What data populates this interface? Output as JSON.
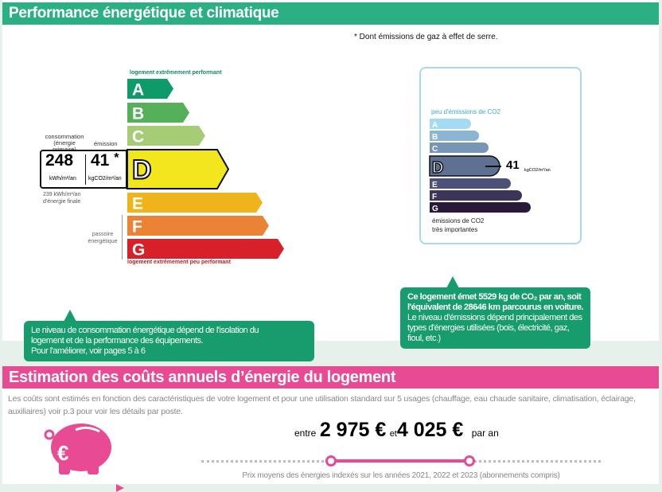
{
  "section1": {
    "title": "Performance énergétique et climatique",
    "footnote": "* Dont émissions de gaz à effet de serre."
  },
  "dpe": {
    "top_label": "logement extrêmement performant",
    "bottom_label": "logement extrêmement peu performant",
    "classes": [
      {
        "letter": "A",
        "color": "#0f9a6a"
      },
      {
        "letter": "B",
        "color": "#54b15a"
      },
      {
        "letter": "C",
        "color": "#a6cd76"
      },
      {
        "letter": "D",
        "color": "#f2e61c"
      },
      {
        "letter": "E",
        "color": "#efb41c"
      },
      {
        "letter": "F",
        "color": "#eb8337"
      },
      {
        "letter": "G",
        "color": "#d8202a"
      }
    ],
    "current_class": "D",
    "consumption_label": "consommation",
    "consumption_sub": "(énergie primaire)",
    "emission_label": "émission",
    "consumption_value": "248",
    "consumption_unit": "kWh/m²/an",
    "emission_value": "41",
    "emission_star": "*",
    "emission_unit": "kgCO2/m²/an",
    "final_energy": "239 kWh/m²/an",
    "final_energy_label": "d'énergie finale",
    "passoire_1": "passoire",
    "passoire_2": "énergétique"
  },
  "ges": {
    "top_label": "peu d'émissions de CO2",
    "bottom_label_1": "émissions de CO2",
    "bottom_label_2": "très importantes",
    "classes": [
      {
        "letter": "A",
        "color": "#a4dbf3"
      },
      {
        "letter": "B",
        "color": "#8cb4d3"
      },
      {
        "letter": "C",
        "color": "#7795b4"
      },
      {
        "letter": "D",
        "color": "#5e7192"
      },
      {
        "letter": "E",
        "color": "#4b5177"
      },
      {
        "letter": "F",
        "color": "#3b3657"
      },
      {
        "letter": "G",
        "color": "#281a38"
      }
    ],
    "current_class": "D",
    "value": "41",
    "unit": "kgCO2/m²/an"
  },
  "tip_left": {
    "line1": "Le niveau de consommation énergétique dépend de l'isolation du",
    "line2": "logement et de la performance des équipements.",
    "line3": "Pour l'améliorer, voir pages 5 à 6"
  },
  "tip_right": {
    "line1": "Ce logement émet 5529  kg de CO₂ par an, soit",
    "line2": "l'équivalent de 28646 km parcourus en voiture.",
    "line3": "Le niveau d'émissions dépend principalement des",
    "line4": "types d'énergies utilisées (bois, électricité, gaz,",
    "line5": "fioul, etc.)"
  },
  "section2": {
    "title": "Estimation des coûts annuels d’énergie du logement",
    "desc": "Les coûts sont estimés en fonction des caractéristiques de votre logement et pour une utilisation standard sur 5 usages (chauffage, eau chaude sanitaire, climatisation, éclairage, auxiliaires) voir p.3 pour voir les détails par poste.",
    "between": "entre",
    "min": "2 975 €",
    "and": "et",
    "max": "4 025 €",
    "per_year": "par an",
    "caption": "Prix moyens des énergies indexés sur les années 2021, 2022 et 2023  (abonnements compris)",
    "accent": "#e84b93"
  }
}
